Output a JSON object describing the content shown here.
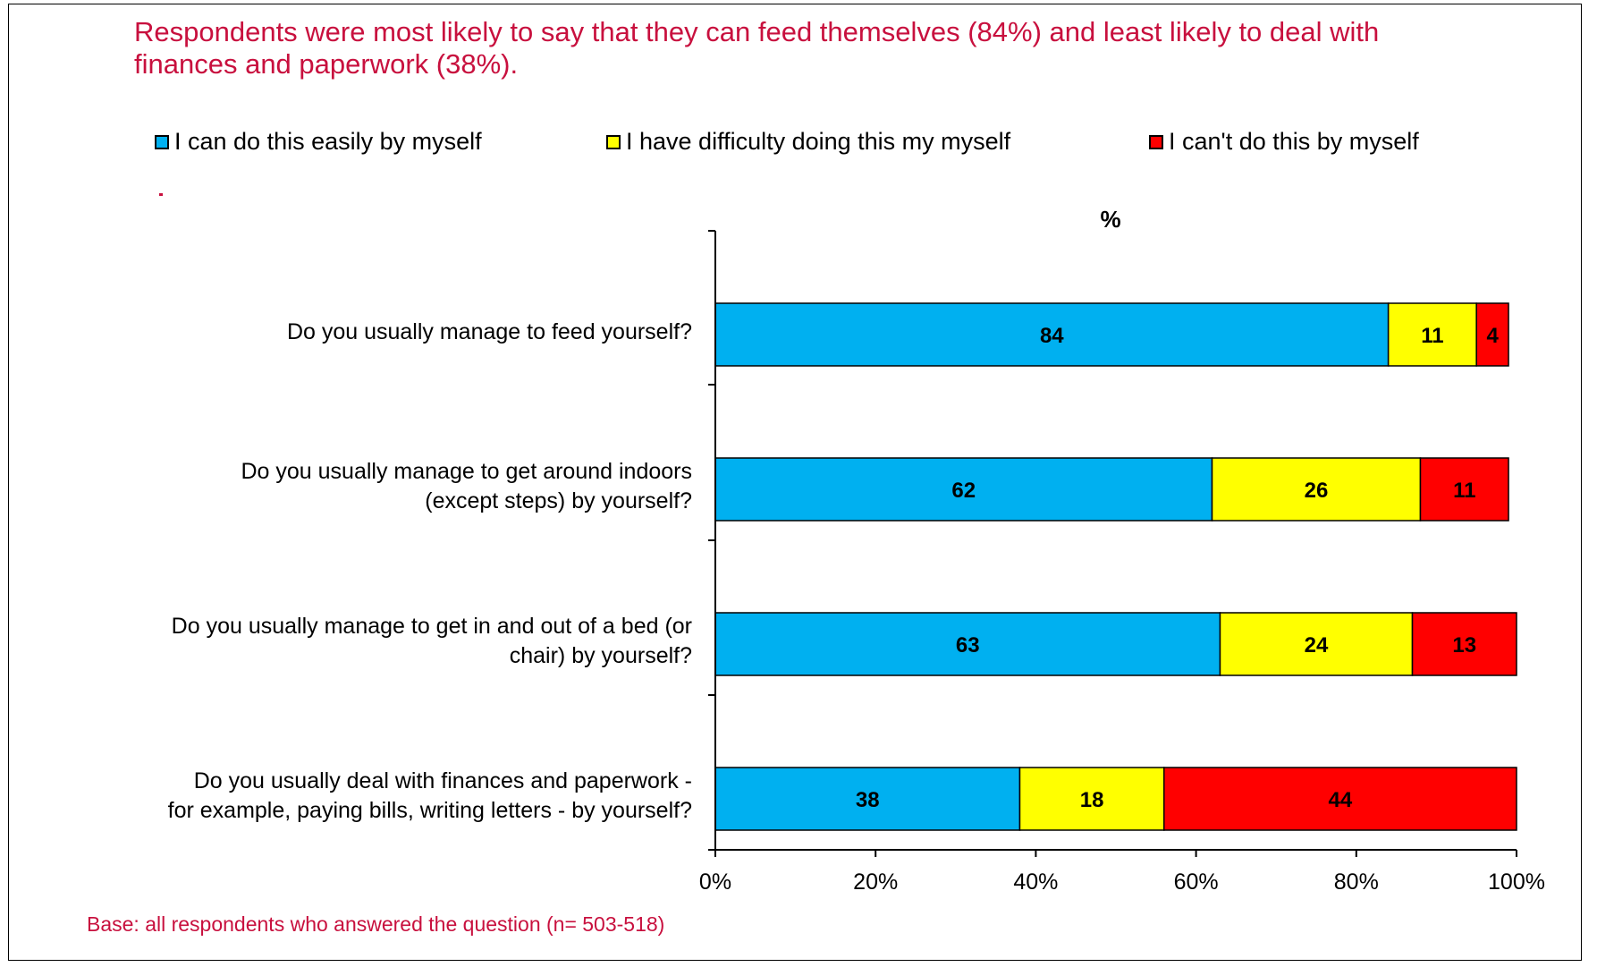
{
  "headline": "Respondents were most likely to say that they can feed themselves (84%) and least likely to deal with finances and paperwork (38%).",
  "footnote": "Base: all respondents who answered the question (n= 503-518)",
  "colors": {
    "series0": "#00b0f0",
    "series1": "#ffff00",
    "series2": "#ff0000",
    "accent": "#c8103e"
  },
  "chart_data": {
    "type": "bar",
    "orientation": "horizontal",
    "stacked": true,
    "title": "%",
    "categories": [
      "Do you usually manage to feed yourself?",
      "Do you usually manage to get around indoors (except steps) by yourself?",
      "Do you usually manage to get in and out of a bed (or chair) by yourself?",
      "Do you usually deal with finances and paperwork - for example, paying bills, writing letters - by yourself?"
    ],
    "category_lines": [
      [
        "Do you usually manage to feed yourself?"
      ],
      [
        "Do you usually manage to get around indoors",
        "(except steps) by yourself?"
      ],
      [
        "Do you usually manage to get in and out of a bed (or",
        "chair) by yourself?"
      ],
      [
        "Do you usually deal with finances and paperwork -",
        "for example, paying bills, writing letters - by yourself?"
      ]
    ],
    "series": [
      {
        "name": "I can do this easily by myself",
        "values": [
          84,
          62,
          63,
          38
        ]
      },
      {
        "name": "I have difficulty doing this my myself",
        "values": [
          11,
          26,
          24,
          18
        ]
      },
      {
        "name": "I can't do this by myself",
        "values": [
          4,
          11,
          13,
          44
        ]
      }
    ],
    "xlim": [
      0,
      100
    ],
    "xticks": [
      "0%",
      "20%",
      "40%",
      "60%",
      "80%",
      "100%"
    ],
    "legend_position": "top",
    "grid": false
  }
}
